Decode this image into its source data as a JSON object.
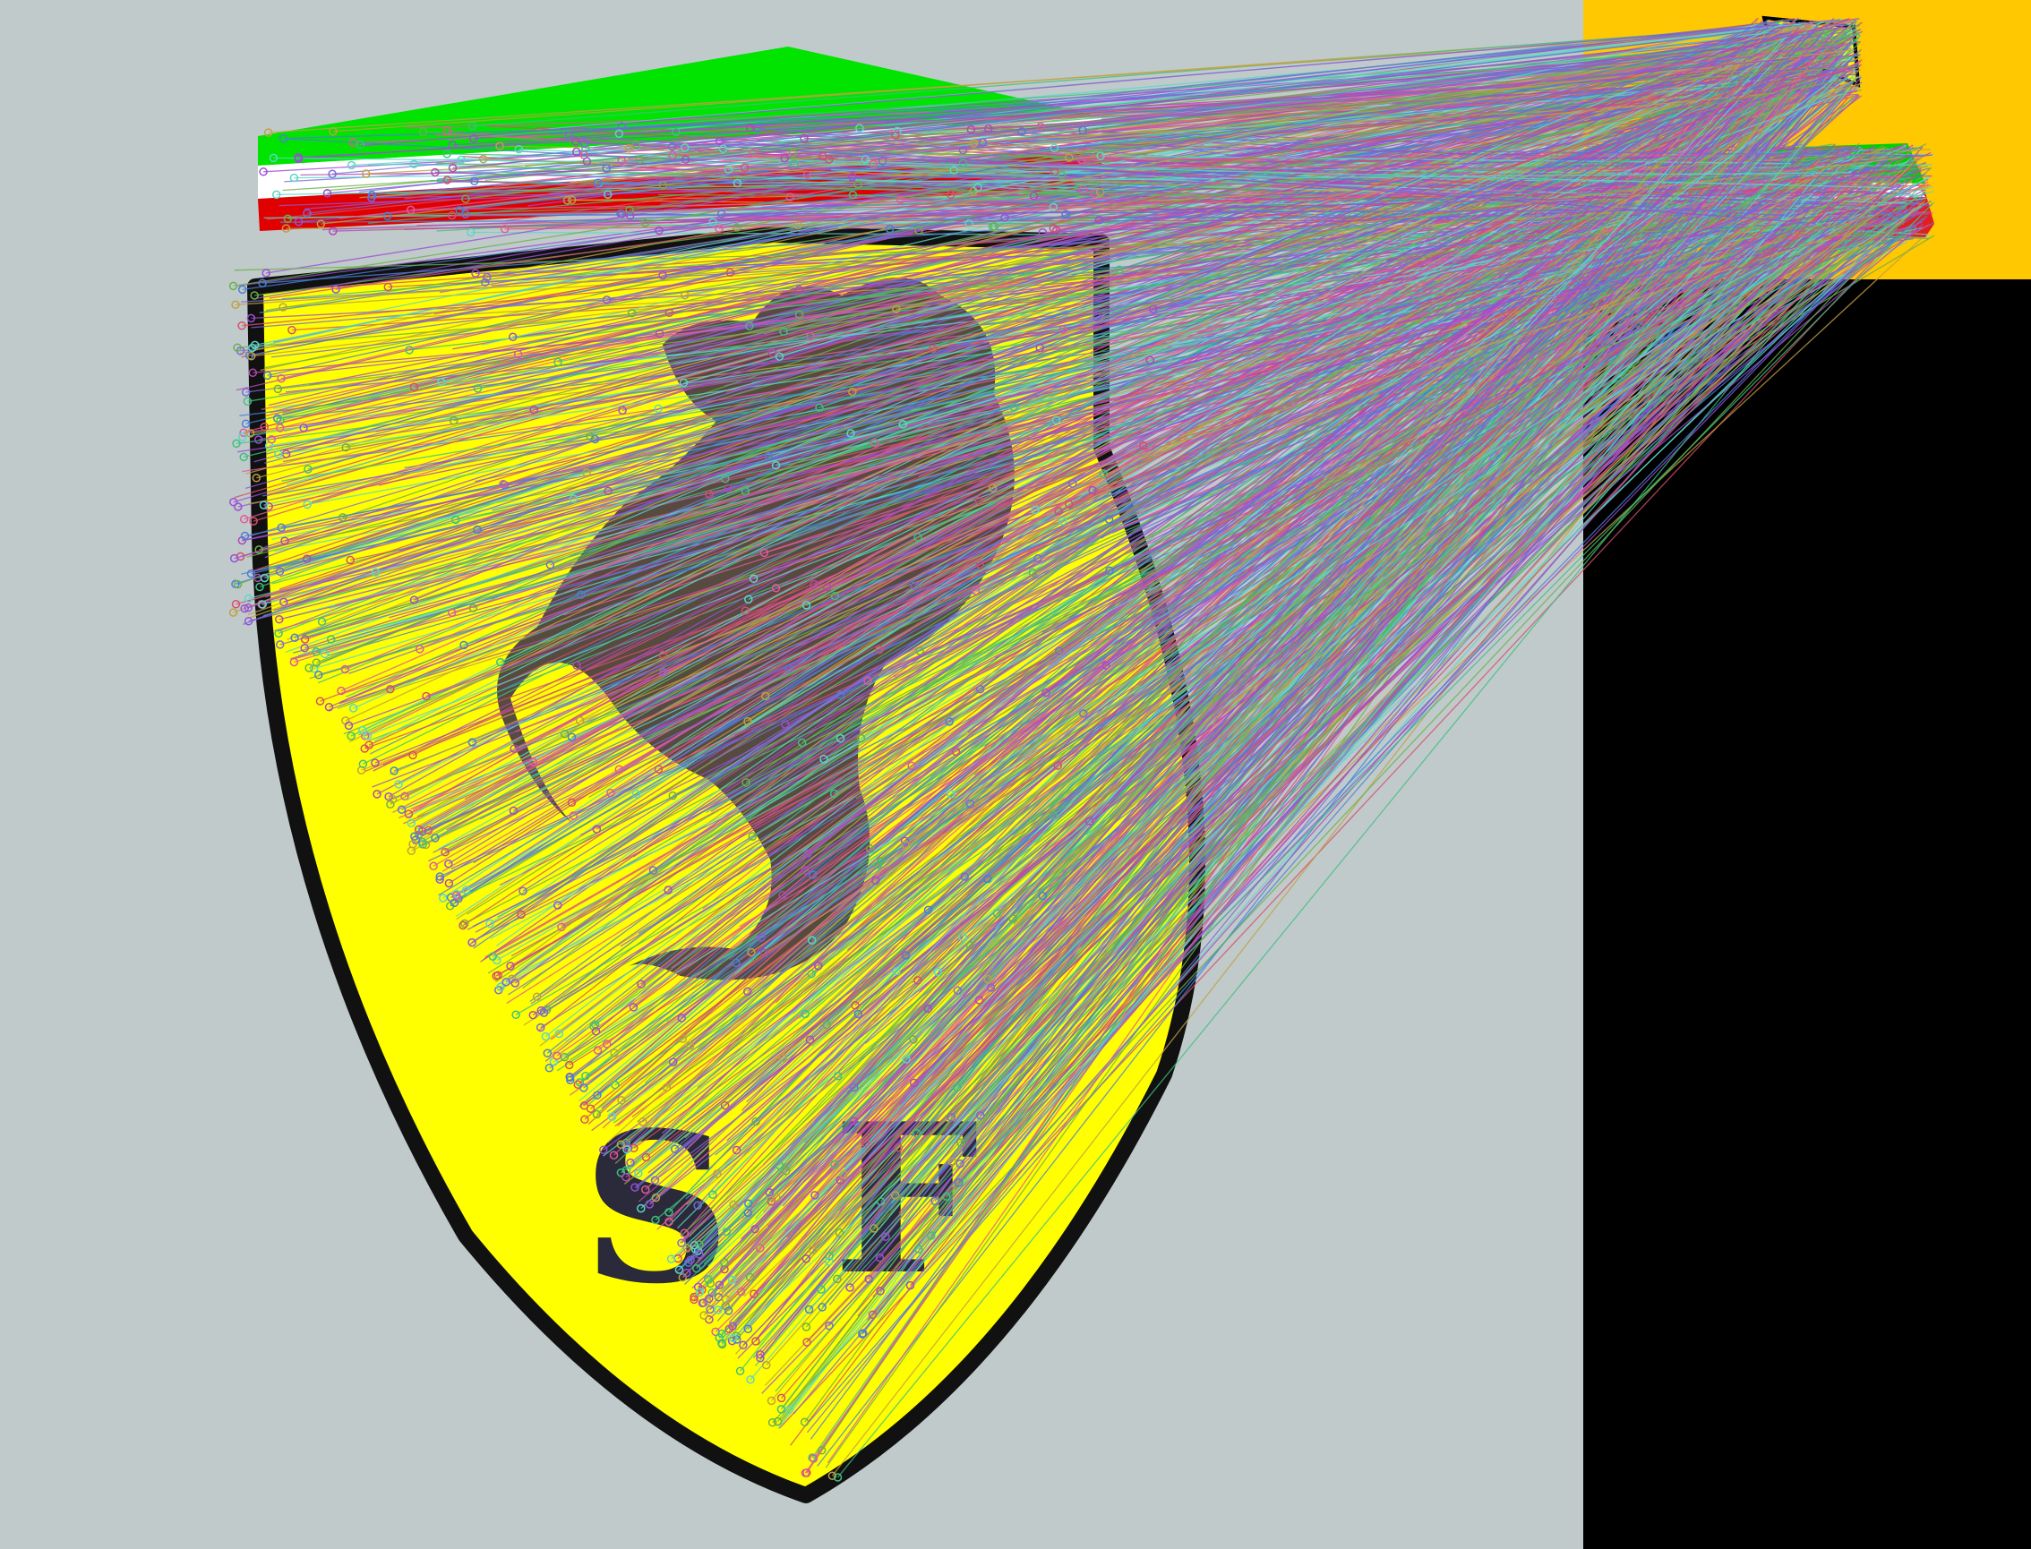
{
  "scene": {
    "description_tag": "feature-match-visualization",
    "colors": {
      "background": "#c0cacb",
      "crest_yellow": "#ffff00",
      "crest_outline": "#000000",
      "band_green": "#00e400",
      "band_white": "#ffffff",
      "band_red": "#e00000",
      "thumbnail_gold": "#ffc800",
      "right_panel": "#000000"
    },
    "match_line_palette": [
      "#9a4fd6",
      "#3fbf7f",
      "#e05a9a",
      "#4a7fd6",
      "#c0a040",
      "#5ad6c8",
      "#d64f6a",
      "#7a6ad6",
      "#6ab04a",
      "#b04ab0"
    ],
    "crest_glyphs": [
      "S",
      "F"
    ]
  }
}
